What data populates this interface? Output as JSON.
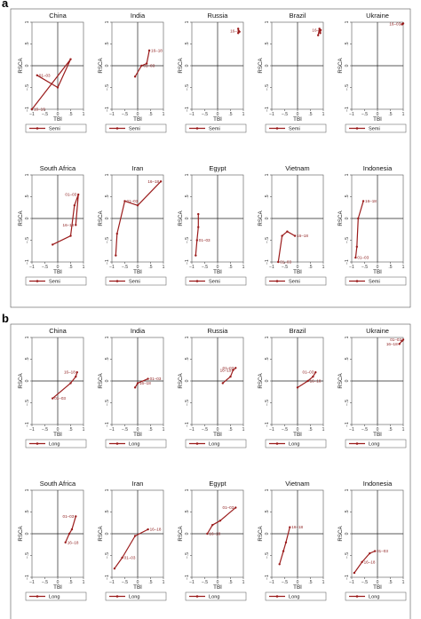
{
  "figure": {
    "panels": [
      {
        "letter": "a"
      },
      {
        "letter": "b"
      }
    ]
  },
  "axes": {
    "xlabel": "TBI",
    "ylabel": "RSCA",
    "xticks": [
      "−1",
      "−.5",
      "0",
      ".5",
      "1"
    ],
    "yticks": [
      "1",
      ".5",
      "0",
      "−.5",
      "−1"
    ]
  },
  "colors": {
    "series": "#9b1c1c",
    "label": "#8b1a1a",
    "frame": "#555555",
    "background": "#ffffff"
  },
  "chart_data": [
    {
      "type": "line",
      "group": "a",
      "legend": "Semi",
      "xlim": [
        -1,
        1
      ],
      "ylim": [
        -1,
        1
      ],
      "grid": false,
      "panels": [
        {
          "title": "China",
          "points": [
            [
              -0.8,
              -0.22
            ],
            [
              0.0,
              -0.5
            ],
            [
              0.5,
              0.15
            ],
            [
              -1.0,
              -1.0
            ]
          ],
          "labels": [
            {
              "text": "01–03",
              "at": 0
            },
            {
              "text": "16–18",
              "at": 3
            }
          ]
        },
        {
          "title": "India",
          "points": [
            [
              -0.1,
              -0.25
            ],
            [
              0.15,
              0.0
            ],
            [
              0.35,
              0.05
            ],
            [
              0.45,
              0.35
            ]
          ],
          "labels": [
            {
              "text": "01–03",
              "at": 1
            },
            {
              "text": "16–18",
              "at": 3
            }
          ]
        },
        {
          "title": "Russia",
          "points": [
            [
              0.8,
              0.75
            ],
            [
              0.8,
              0.85
            ],
            [
              0.82,
              0.8
            ],
            [
              0.85,
              0.78
            ]
          ],
          "labels": [
            {
              "text": "16–",
              "at": 2
            }
          ]
        },
        {
          "title": "Brazil",
          "points": [
            [
              0.8,
              0.7
            ],
            [
              0.85,
              0.85
            ],
            [
              0.88,
              0.75
            ],
            [
              0.9,
              0.82
            ]
          ],
          "labels": [
            {
              "text": "16–",
              "at": 3
            }
          ]
        },
        {
          "title": "Ukraine",
          "points": [
            [
              0.95,
              0.95
            ],
            [
              0.97,
              0.96
            ],
            [
              1.0,
              0.97
            ]
          ],
          "labels": [
            {
              "text": "16–03",
              "at": 1
            }
          ]
        },
        {
          "title": "South Africa",
          "points": [
            [
              -0.2,
              -0.6
            ],
            [
              0.5,
              -0.4
            ],
            [
              0.65,
              0.3
            ],
            [
              0.8,
              0.55
            ],
            [
              0.7,
              -0.15
            ]
          ],
          "labels": [
            {
              "text": "01–03",
              "at": 3
            },
            {
              "text": "16–18",
              "at": 4
            }
          ]
        },
        {
          "title": "Iran",
          "points": [
            [
              -0.85,
              -0.85
            ],
            [
              -0.8,
              -0.35
            ],
            [
              -0.5,
              0.4
            ],
            [
              0.0,
              0.3
            ],
            [
              0.9,
              0.85
            ]
          ],
          "labels": [
            {
              "text": "01–03",
              "at": 2
            },
            {
              "text": "16–18",
              "at": 4
            }
          ]
        },
        {
          "title": "Egypt",
          "points": [
            [
              -0.85,
              -0.85
            ],
            [
              -0.8,
              -0.5
            ],
            [
              -0.75,
              -0.2
            ],
            [
              -0.75,
              0.1
            ]
          ],
          "labels": [
            {
              "text": "01–03",
              "at": 1
            }
          ]
        },
        {
          "title": "Vietnam",
          "points": [
            [
              -0.75,
              -1.0
            ],
            [
              -0.6,
              -0.4
            ],
            [
              -0.4,
              -0.3
            ],
            [
              -0.1,
              -0.4
            ]
          ],
          "labels": [
            {
              "text": "01–03",
              "at": 0
            },
            {
              "text": "16–18",
              "at": 3
            }
          ]
        },
        {
          "title": "Indonesia",
          "points": [
            [
              -0.85,
              -0.9
            ],
            [
              -0.8,
              -0.65
            ],
            [
              -0.75,
              0.0
            ],
            [
              -0.55,
              0.4
            ]
          ],
          "labels": [
            {
              "text": "01–03",
              "at": 0
            },
            {
              "text": "16–18",
              "at": 3
            }
          ]
        }
      ]
    },
    {
      "type": "line",
      "group": "b",
      "legend": "Long",
      "xlim": [
        -1,
        1
      ],
      "ylim": [
        -1,
        1
      ],
      "grid": false,
      "panels": [
        {
          "title": "China",
          "points": [
            [
              -0.2,
              -0.4
            ],
            [
              0.5,
              -0.05
            ],
            [
              0.7,
              0.1
            ],
            [
              0.75,
              0.2
            ]
          ],
          "labels": [
            {
              "text": "01–03",
              "at": 0
            },
            {
              "text": "16–18",
              "at": 3
            }
          ]
        },
        {
          "title": "India",
          "points": [
            [
              -0.1,
              -0.15
            ],
            [
              0.0,
              -0.05
            ],
            [
              0.4,
              0.05
            ]
          ],
          "labels": [
            {
              "text": "16–18",
              "at": 1
            },
            {
              "text": "01–03",
              "at": 2
            }
          ]
        },
        {
          "title": "Russia",
          "points": [
            [
              0.2,
              -0.05
            ],
            [
              0.5,
              0.1
            ],
            [
              0.6,
              0.25
            ],
            [
              0.7,
              0.3
            ]
          ],
          "labels": [
            {
              "text": "16–19",
              "at": 2
            },
            {
              "text": "01–03",
              "at": 3
            }
          ]
        },
        {
          "title": "Brazil",
          "points": [
            [
              0.0,
              -0.15
            ],
            [
              0.4,
              0.0
            ],
            [
              0.6,
              0.1
            ],
            [
              0.7,
              0.2
            ]
          ],
          "labels": [
            {
              "text": "16–18",
              "at": 1
            },
            {
              "text": "01–03",
              "at": 3
            }
          ]
        },
        {
          "title": "Ukraine",
          "points": [
            [
              0.85,
              0.85
            ],
            [
              0.95,
              0.92
            ],
            [
              1.0,
              0.95
            ]
          ],
          "labels": [
            {
              "text": "01–03",
              "at": 2
            },
            {
              "text": "16–18",
              "at": 0
            }
          ]
        },
        {
          "title": "South Africa",
          "points": [
            [
              0.3,
              -0.2
            ],
            [
              0.45,
              0.0
            ],
            [
              0.55,
              0.1
            ],
            [
              0.7,
              0.4
            ]
          ],
          "labels": [
            {
              "text": "16–18",
              "at": 0
            },
            {
              "text": "01–03",
              "at": 3
            }
          ]
        },
        {
          "title": "Iran",
          "points": [
            [
              -0.9,
              -0.8
            ],
            [
              -0.6,
              -0.55
            ],
            [
              -0.1,
              -0.05
            ],
            [
              0.4,
              0.1
            ]
          ],
          "labels": [
            {
              "text": "01–03",
              "at": 1
            },
            {
              "text": "16–18",
              "at": 3
            }
          ]
        },
        {
          "title": "Egypt",
          "points": [
            [
              -0.4,
              0.0
            ],
            [
              -0.2,
              0.2
            ],
            [
              0.1,
              0.3
            ],
            [
              0.7,
              0.6
            ]
          ],
          "labels": [
            {
              "text": "16–18",
              "at": 0
            },
            {
              "text": "01–03",
              "at": 3
            }
          ]
        },
        {
          "title": "Vietnam",
          "points": [
            [
              -0.7,
              -0.7
            ],
            [
              -0.55,
              -0.4
            ],
            [
              -0.45,
              -0.2
            ],
            [
              -0.3,
              0.15
            ]
          ],
          "labels": [
            {
              "text": "16–18",
              "at": 3
            }
          ]
        },
        {
          "title": "Indonesia",
          "points": [
            [
              -0.9,
              -0.9
            ],
            [
              -0.6,
              -0.65
            ],
            [
              -0.3,
              -0.45
            ],
            [
              -0.1,
              -0.4
            ]
          ],
          "labels": [
            {
              "text": "16–18",
              "at": 1
            },
            {
              "text": "01–03",
              "at": 3
            }
          ]
        }
      ]
    }
  ]
}
